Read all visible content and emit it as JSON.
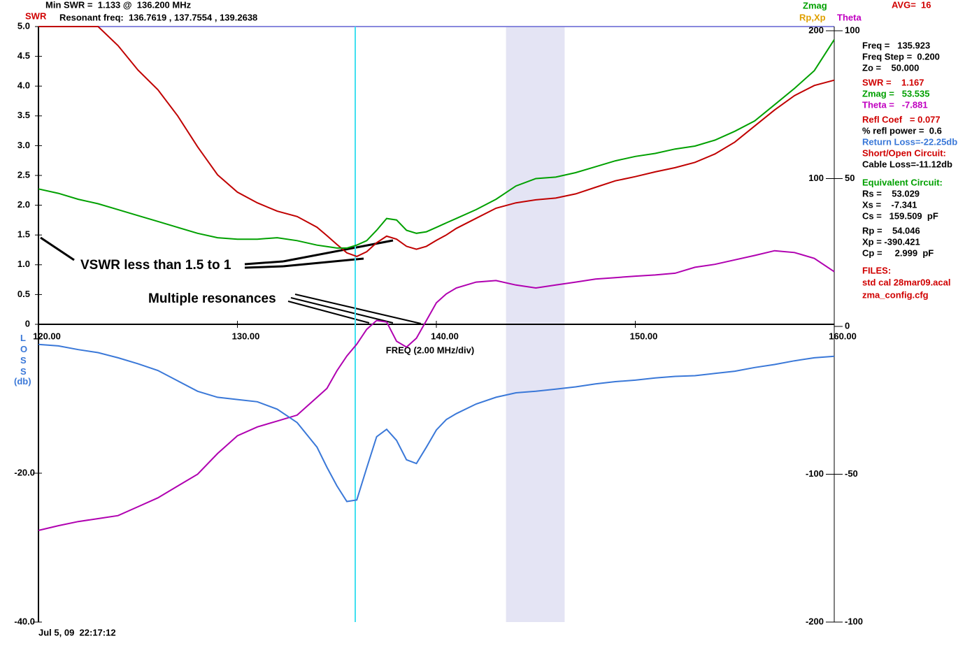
{
  "header": {
    "min_swr": "Min SWR =  1.133 @  136.200 MHz",
    "resonant": "Resonant freq:  136.7619 , 137.7554 , 139.2638",
    "avg": "AVG=  16"
  },
  "chart_data": {
    "type": "line",
    "x": [
      120,
      121,
      122,
      123,
      124,
      125,
      126,
      127,
      128,
      129,
      130,
      131,
      132,
      133,
      134,
      134.5,
      135,
      135.5,
      136,
      136.5,
      137,
      137.5,
      138,
      138.5,
      139,
      139.5,
      140,
      140.5,
      141,
      142,
      143,
      144,
      145,
      146,
      147,
      148,
      149,
      150,
      151,
      152,
      153,
      154,
      155,
      156,
      157,
      158,
      159,
      160
    ],
    "series": [
      {
        "name": "SWR",
        "color": "#c00000",
        "axis": "y",
        "values": [
          5.0,
          5.0,
          5.0,
          5.0,
          4.68,
          4.27,
          3.94,
          3.5,
          2.98,
          2.51,
          2.22,
          2.04,
          1.9,
          1.81,
          1.63,
          1.49,
          1.34,
          1.2,
          1.14,
          1.22,
          1.37,
          1.48,
          1.43,
          1.31,
          1.26,
          1.31,
          1.41,
          1.5,
          1.61,
          1.78,
          1.95,
          2.04,
          2.09,
          2.12,
          2.19,
          2.3,
          2.41,
          2.48,
          2.56,
          2.63,
          2.72,
          2.86,
          3.06,
          3.33,
          3.6,
          3.84,
          4.01,
          4.1
        ]
      },
      {
        "name": "Zmag",
        "color": "#00a000",
        "axis": "y2",
        "values": [
          93,
          90,
          86,
          83,
          79,
          75,
          71,
          67,
          63,
          60,
          59,
          59,
          60,
          58,
          55,
          54,
          53,
          53,
          55,
          58,
          65,
          73,
          72,
          65,
          63,
          64,
          67,
          70,
          73,
          79,
          86,
          95,
          100,
          101,
          104,
          108,
          112,
          115,
          117,
          120,
          122,
          126,
          132,
          139,
          150,
          161,
          173,
          194
        ]
      },
      {
        "name": "Theta",
        "color": "#b000b0",
        "axis": "y3",
        "values": [
          -69,
          -67.4,
          -66,
          -65,
          -64,
          -61,
          -58,
          -54,
          -50,
          -43,
          -37,
          -34,
          -32,
          -30,
          -24,
          -21,
          -15,
          -10,
          -6,
          -1,
          2,
          1.5,
          -5,
          -7,
          -4,
          2,
          8,
          11,
          13,
          15,
          15.5,
          14,
          13,
          14,
          15,
          16,
          16.5,
          17,
          17.4,
          18,
          20,
          21,
          22.5,
          24,
          25.6,
          25,
          23,
          18.5
        ]
      },
      {
        "name": "LOSS",
        "color": "#3a78d8",
        "axis": "y4",
        "values": [
          -2.7,
          -2.9,
          -3.4,
          -3.8,
          -4.5,
          -5.3,
          -6.2,
          -7.6,
          -9.0,
          -9.8,
          -10.1,
          -10.4,
          -11.4,
          -13.2,
          -16.5,
          -19.2,
          -21.7,
          -23.8,
          -23.6,
          -19.3,
          -15.1,
          -14.1,
          -15.6,
          -18.2,
          -18.7,
          -16.5,
          -14.2,
          -12.8,
          -12.0,
          -10.7,
          -9.8,
          -9.2,
          -9.0,
          -8.7,
          -8.4,
          -8.0,
          -7.7,
          -7.5,
          -7.2,
          -7.0,
          -6.9,
          -6.6,
          -6.3,
          -5.8,
          -5.4,
          -4.9,
          -4.5,
          -4.3
        ]
      }
    ],
    "xlim": [
      120,
      160
    ],
    "xticks": [
      {
        "value": 120,
        "label": "120.00"
      },
      {
        "value": 130,
        "label": "130.00"
      },
      {
        "value": 140,
        "label": "140.00"
      },
      {
        "value": 150,
        "label": "150.00"
      },
      {
        "value": 160,
        "label": "160.00"
      }
    ],
    "xlabel": "FREQ (2.00 MHz/div)",
    "ylim": [
      0,
      5
    ],
    "yticks": [
      {
        "value": 5,
        "label": "5.0"
      },
      {
        "value": 4.5,
        "label": "4.5"
      },
      {
        "value": 4,
        "label": "4.0"
      },
      {
        "value": 3.5,
        "label": "3.5"
      },
      {
        "value": 3,
        "label": "3.0"
      },
      {
        "value": 2.5,
        "label": "2.5"
      },
      {
        "value": 2,
        "label": "2.0"
      },
      {
        "value": 1.5,
        "label": "1.5"
      },
      {
        "value": 1,
        "label": "1.0"
      },
      {
        "value": 0.5,
        "label": "0.5"
      },
      0
    ],
    "y2lim": [
      -200,
      200
    ],
    "y2ticks": [
      200,
      100,
      -100,
      -200
    ],
    "y2label": "Rp,Xp",
    "y2label_color": "#e0a000",
    "y3lim": [
      -100,
      100
    ],
    "y3ticks": [
      100,
      50,
      0,
      -50,
      -100
    ],
    "y4lim": [
      -40,
      0
    ],
    "y4ticks": [
      {
        "value": -20,
        "label": "-20.0"
      },
      {
        "value": -40,
        "label": "-40.0"
      }
    ],
    "y4label": "(db)",
    "cursor": 135.923,
    "cursor_color": "#40e0f0",
    "band": [
      143.5,
      146.45
    ],
    "band_color": "#e4e4f4",
    "annotations": [
      "VSWR less than 1.5 to 1",
      "Multiple resonances"
    ],
    "timestamp": "Jul 5, 09  22:17:12"
  },
  "readouts": [
    {
      "text": "Freq =   135.923",
      "color": "#000000"
    },
    {
      "text": "Freq Step =  0.200",
      "color": "#000000"
    },
    {
      "text": "Zo =    50.000",
      "color": "#000000"
    },
    {
      "text": "SWR =    1.167",
      "color": "#d00000"
    },
    {
      "text": "Zmag =   53.535",
      "color": "#00a000"
    },
    {
      "text": "Theta =   -7.881",
      "color": "#c000c0"
    },
    {
      "text": "Refl Coef   = 0.077",
      "color": "#d00000"
    },
    {
      "text": "% refl power =  0.6",
      "color": "#000000"
    },
    {
      "text": "Return Loss=-22.25db",
      "color": "#3a78d8"
    },
    {
      "text": "Short/Open Circuit:",
      "color": "#d00000"
    },
    {
      "text": "Cable Loss=-11.12db",
      "color": "#000000"
    },
    {
      "text": "Equivalent Circuit:",
      "color": "#00a000"
    },
    {
      "text": "Rs =    53.029",
      "color": "#000000"
    },
    {
      "text": "Xs =    -7.341",
      "color": "#000000"
    },
    {
      "text": "Cs =   159.509  pF",
      "color": "#000000"
    },
    {
      "text": "Rp =    54.046",
      "color": "#000000"
    },
    {
      "text": "Xp = -390.421",
      "color": "#000000"
    },
    {
      "text": "Cp =     2.999  pF",
      "color": "#000000"
    },
    {
      "text": "FILES:",
      "color": "#d00000"
    },
    {
      "text": "std cal 28mar09.acal",
      "color": "#d00000"
    },
    {
      "text": "zma_config.cfg",
      "color": "#d00000"
    }
  ]
}
